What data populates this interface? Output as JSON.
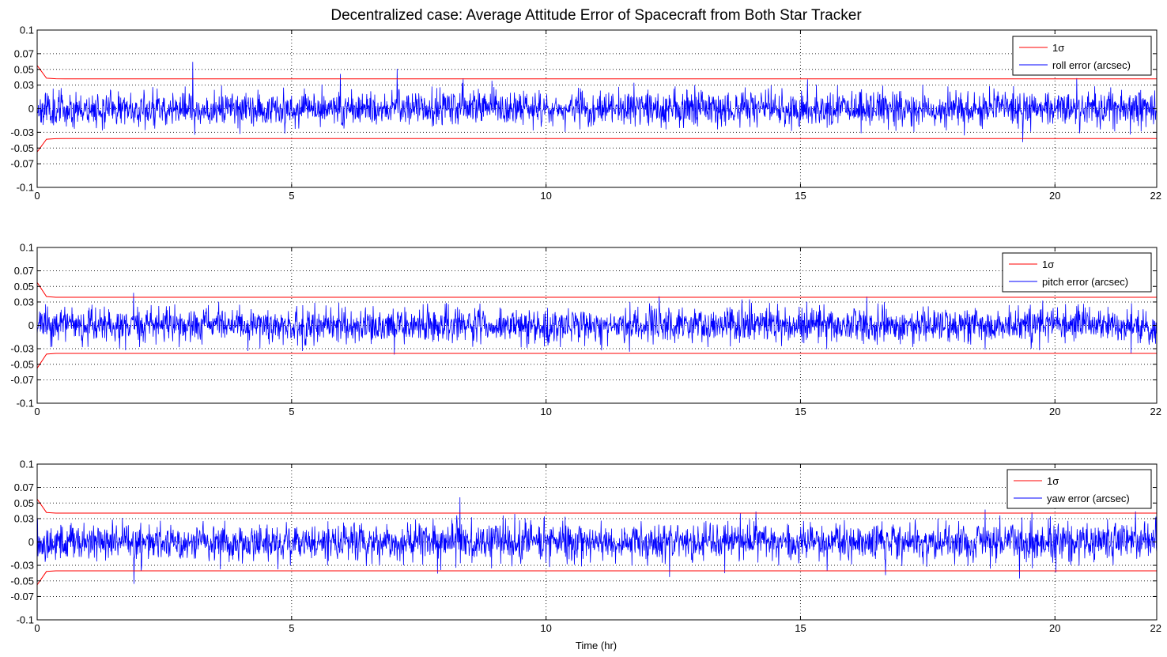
{
  "chart_data": {
    "title": "Decentralized case: Average Attitude Error of Spacecraft from Both Star Tracker",
    "xlabel": "Time (hr)",
    "type": "line",
    "grid": true,
    "legend_position": "top-right",
    "colors": {
      "sigma": "#ff0000",
      "error": "#0000ff"
    },
    "xlim": [
      0,
      22
    ],
    "ylim": [
      -0.1,
      0.1
    ],
    "xticks": [
      0,
      5,
      10,
      15,
      20,
      22
    ],
    "xtick_labels": [
      "0",
      "5",
      "10",
      "15",
      "20",
      "22"
    ],
    "yticks": [
      0.1,
      0.07,
      0.05,
      0.03,
      0,
      -0.03,
      -0.05,
      -0.07,
      -0.1
    ],
    "ytick_labels": [
      "0.1",
      "0.07",
      "0.05",
      "0.03",
      "0",
      "-0.03",
      "-0.05",
      "-0.07",
      "-0.1"
    ],
    "panels": [
      {
        "legend": [
          "1σ",
          "roll error (arcsec)"
        ],
        "sigma": 0.038,
        "sigma_initial": 0.055,
        "noise_std": 0.011,
        "seed": 11
      },
      {
        "legend": [
          "1σ",
          "pitch error (arcsec)"
        ],
        "sigma": 0.036,
        "sigma_initial": 0.055,
        "noise_std": 0.011,
        "seed": 23
      },
      {
        "legend": [
          "1σ",
          "yaw error (arcsec)"
        ],
        "sigma": 0.037,
        "sigma_initial": 0.055,
        "noise_std": 0.012,
        "seed": 37
      }
    ]
  }
}
